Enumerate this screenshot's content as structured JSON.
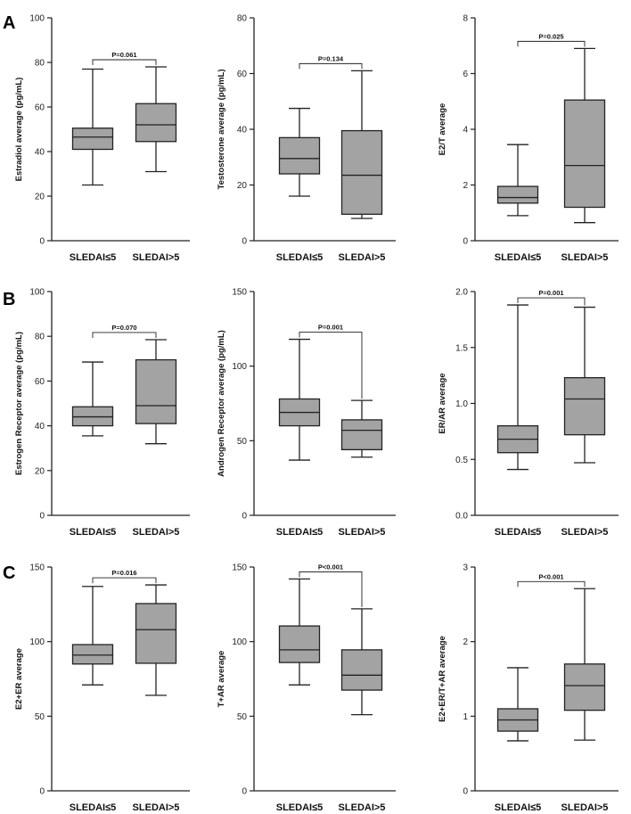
{
  "panel_letters": [
    "A",
    "B",
    "C"
  ],
  "colors": {
    "box_fill": "#a3a3a3",
    "stroke": "#222222"
  },
  "chart_data": [
    {
      "type": "box",
      "title": "",
      "xlabel": "",
      "ylabel": "Estradiol average (pg/mL)",
      "ylim": [
        0,
        100
      ],
      "yticks": [
        0,
        20,
        40,
        60,
        80,
        100
      ],
      "categories": [
        "SLEDAI≤5",
        "SLEDAI>5"
      ],
      "boxes": [
        {
          "min": 25,
          "q1": 41,
          "median": 46.5,
          "q3": 50.5,
          "max": 77
        },
        {
          "min": 31,
          "q1": 44.5,
          "median": 52,
          "q3": 61.5,
          "max": 78
        }
      ],
      "pvalue": "P=0.061"
    },
    {
      "type": "box",
      "title": "",
      "xlabel": "",
      "ylabel": "Testosterone average (pg/mL)",
      "ylim": [
        0,
        80
      ],
      "yticks": [
        0,
        20,
        40,
        60,
        80
      ],
      "categories": [
        "SLEDAI≤5",
        "SLEDAI>5"
      ],
      "boxes": [
        {
          "min": 16,
          "q1": 24,
          "median": 29.5,
          "q3": 37,
          "max": 47.5
        },
        {
          "min": 8,
          "q1": 9.5,
          "median": 23.5,
          "q3": 39.5,
          "max": 61
        }
      ],
      "pvalue": "P=0.134"
    },
    {
      "type": "box",
      "title": "",
      "xlabel": "",
      "ylabel": "E2/T average",
      "ylim": [
        0,
        8
      ],
      "yticks": [
        0,
        2,
        4,
        6,
        8
      ],
      "categories": [
        "SLEDAI≤5",
        "SLEDAI>5"
      ],
      "boxes": [
        {
          "min": 0.9,
          "q1": 1.35,
          "median": 1.55,
          "q3": 1.95,
          "max": 3.45
        },
        {
          "min": 0.65,
          "q1": 1.2,
          "median": 2.7,
          "q3": 5.05,
          "max": 6.9
        }
      ],
      "pvalue": "P=0.025"
    },
    {
      "type": "box",
      "title": "",
      "xlabel": "",
      "ylabel": "Estrogen Receptor average (pg/mL)",
      "ylim": [
        0,
        100
      ],
      "yticks": [
        0,
        20,
        40,
        60,
        80,
        100
      ],
      "categories": [
        "SLEDAI≤5",
        "SLEDAI>5"
      ],
      "boxes": [
        {
          "min": 35.5,
          "q1": 40,
          "median": 44,
          "q3": 48.5,
          "max": 68.5
        },
        {
          "min": 32,
          "q1": 41,
          "median": 49,
          "q3": 69.5,
          "max": 78.5
        }
      ],
      "pvalue": "P=0.070"
    },
    {
      "type": "box",
      "title": "",
      "xlabel": "",
      "ylabel": "Androgen Receptor average (pg/mL)",
      "ylim": [
        0,
        150
      ],
      "yticks": [
        0,
        50,
        100,
        150
      ],
      "categories": [
        "SLEDAI≤5",
        "SLEDAI>5"
      ],
      "boxes": [
        {
          "min": 37,
          "q1": 60,
          "median": 69,
          "q3": 78,
          "max": 118
        },
        {
          "min": 39,
          "q1": 44,
          "median": 57,
          "q3": 64,
          "max": 77
        }
      ],
      "pvalue": "P=0.001"
    },
    {
      "type": "box",
      "title": "",
      "xlabel": "",
      "ylabel": "ER/AR average",
      "ylim": [
        0,
        2.0
      ],
      "yticks": [
        0.0,
        0.5,
        1.0,
        1.5,
        2.0
      ],
      "ytick_labels": [
        "0.0",
        "0.5",
        "1.0",
        "1.5",
        "2.0"
      ],
      "categories": [
        "SLEDAI≤5",
        "SLEDAI>5"
      ],
      "boxes": [
        {
          "min": 0.41,
          "q1": 0.56,
          "median": 0.68,
          "q3": 0.8,
          "max": 1.88
        },
        {
          "min": 0.47,
          "q1": 0.72,
          "median": 1.04,
          "q3": 1.23,
          "max": 1.86
        }
      ],
      "pvalue": "P=0.001"
    },
    {
      "type": "box",
      "title": "",
      "xlabel": "",
      "ylabel": "E2+ER average",
      "ylim": [
        0,
        150
      ],
      "yticks": [
        0,
        50,
        100,
        150
      ],
      "categories": [
        "SLEDAI≤5",
        "SLEDAI>5"
      ],
      "boxes": [
        {
          "min": 71,
          "q1": 85,
          "median": 91,
          "q3": 98,
          "max": 137
        },
        {
          "min": 64,
          "q1": 85.5,
          "median": 108,
          "q3": 125.5,
          "max": 138
        }
      ],
      "pvalue": "P=0.016"
    },
    {
      "type": "box",
      "title": "",
      "xlabel": "",
      "ylabel": "T+AR average",
      "ylim": [
        0,
        150
      ],
      "yticks": [
        0,
        50,
        100,
        150
      ],
      "categories": [
        "SLEDAI≤5",
        "SLEDAI>5"
      ],
      "boxes": [
        {
          "min": 71,
          "q1": 86,
          "median": 94.5,
          "q3": 110.5,
          "max": 142
        },
        {
          "min": 51,
          "q1": 67.5,
          "median": 77.5,
          "q3": 94.5,
          "max": 122
        }
      ],
      "pvalue": "P<0.001"
    },
    {
      "type": "box",
      "title": "",
      "xlabel": "",
      "ylabel": "E2+ER/T+AR average",
      "ylim": [
        0,
        3
      ],
      "yticks": [
        0,
        1,
        2,
        3
      ],
      "categories": [
        "SLEDAI≤5",
        "SLEDAI>5"
      ],
      "boxes": [
        {
          "min": 0.67,
          "q1": 0.8,
          "median": 0.95,
          "q3": 1.1,
          "max": 1.65
        },
        {
          "min": 0.68,
          "q1": 1.08,
          "median": 1.41,
          "q3": 1.7,
          "max": 2.71
        }
      ],
      "pvalue": "P<0.001"
    }
  ]
}
